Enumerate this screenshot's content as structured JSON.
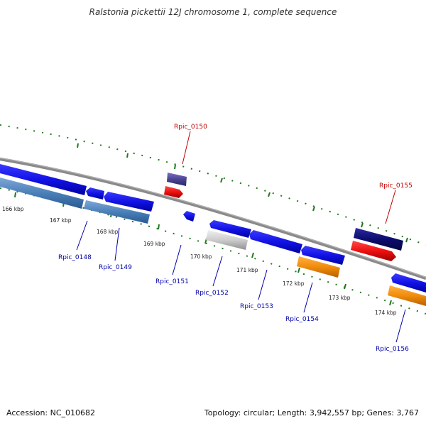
{
  "title": "Ralstonia pickettii 12J chromosome 1, complete sequence",
  "footer": {
    "accession": "Accession: NC_010682",
    "summary": "Topology: circular; Length: 3,942,557 bp; Genes: 3,767"
  },
  "colors": {
    "backbone": "#7a7a7a",
    "tick": "#1e7a1e",
    "forward_label": "#c00000",
    "reverse_label": "#0000aa",
    "cds_blue": "#1010e0",
    "cds_steel": "#4a7fb8",
    "cds_red": "#ee1010",
    "cds_purple": "#4b4494",
    "cds_navy": "#0c0c6e",
    "cds_orange": "#f08c0c",
    "cds_gray": "#c8c8c8"
  },
  "scale_labels": [
    "166 kbp",
    "167 kbp",
    "168 kbp",
    "169 kbp",
    "170 kbp",
    "171 kbp",
    "172 kbp",
    "173 kbp",
    "174 kbp"
  ],
  "genes_forward": [
    {
      "name": "Rpic_0150",
      "feature": "purple-block-and-red-arrow"
    },
    {
      "name": "Rpic_0155",
      "feature": "navy-block-and-red-arrow"
    }
  ],
  "genes_reverse": [
    {
      "name": "Rpic_0148"
    },
    {
      "name": "Rpic_0149"
    },
    {
      "name": "Rpic_0151"
    },
    {
      "name": "Rpic_0152"
    },
    {
      "name": "Rpic_0153"
    },
    {
      "name": "Rpic_0154"
    },
    {
      "name": "Rpic_0156"
    }
  ]
}
